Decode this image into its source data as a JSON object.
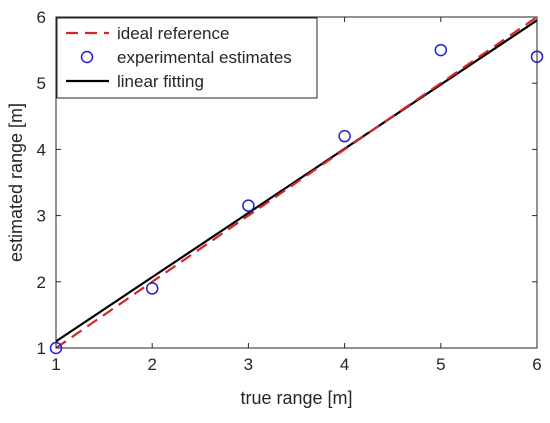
{
  "chart_data": {
    "type": "line",
    "title": "",
    "xlabel": "true range [m]",
    "ylabel": "estimated range [m]",
    "xlim": [
      1,
      6
    ],
    "ylim": [
      1,
      6
    ],
    "xticks": [
      "1",
      "2",
      "3",
      "4",
      "5",
      "6"
    ],
    "yticks": [
      "1",
      "2",
      "3",
      "4",
      "5",
      "6"
    ],
    "grid": false,
    "legend_position": "top-left",
    "series": [
      {
        "name": "ideal reference",
        "kind": "line",
        "style": "dashed",
        "color": "#d62728",
        "x": [
          1,
          6
        ],
        "y": [
          1,
          6
        ]
      },
      {
        "name": "experimental estimates",
        "kind": "scatter",
        "marker": "open-circle",
        "color": "#1f1fd6",
        "x": [
          1,
          2,
          3,
          4,
          5,
          6
        ],
        "y": [
          1.0,
          1.9,
          3.15,
          4.2,
          5.5,
          5.4
        ]
      },
      {
        "name": "linear fitting",
        "kind": "line",
        "style": "solid",
        "color": "#000000",
        "x": [
          1,
          6
        ],
        "y": [
          1.1,
          5.95
        ]
      }
    ]
  }
}
